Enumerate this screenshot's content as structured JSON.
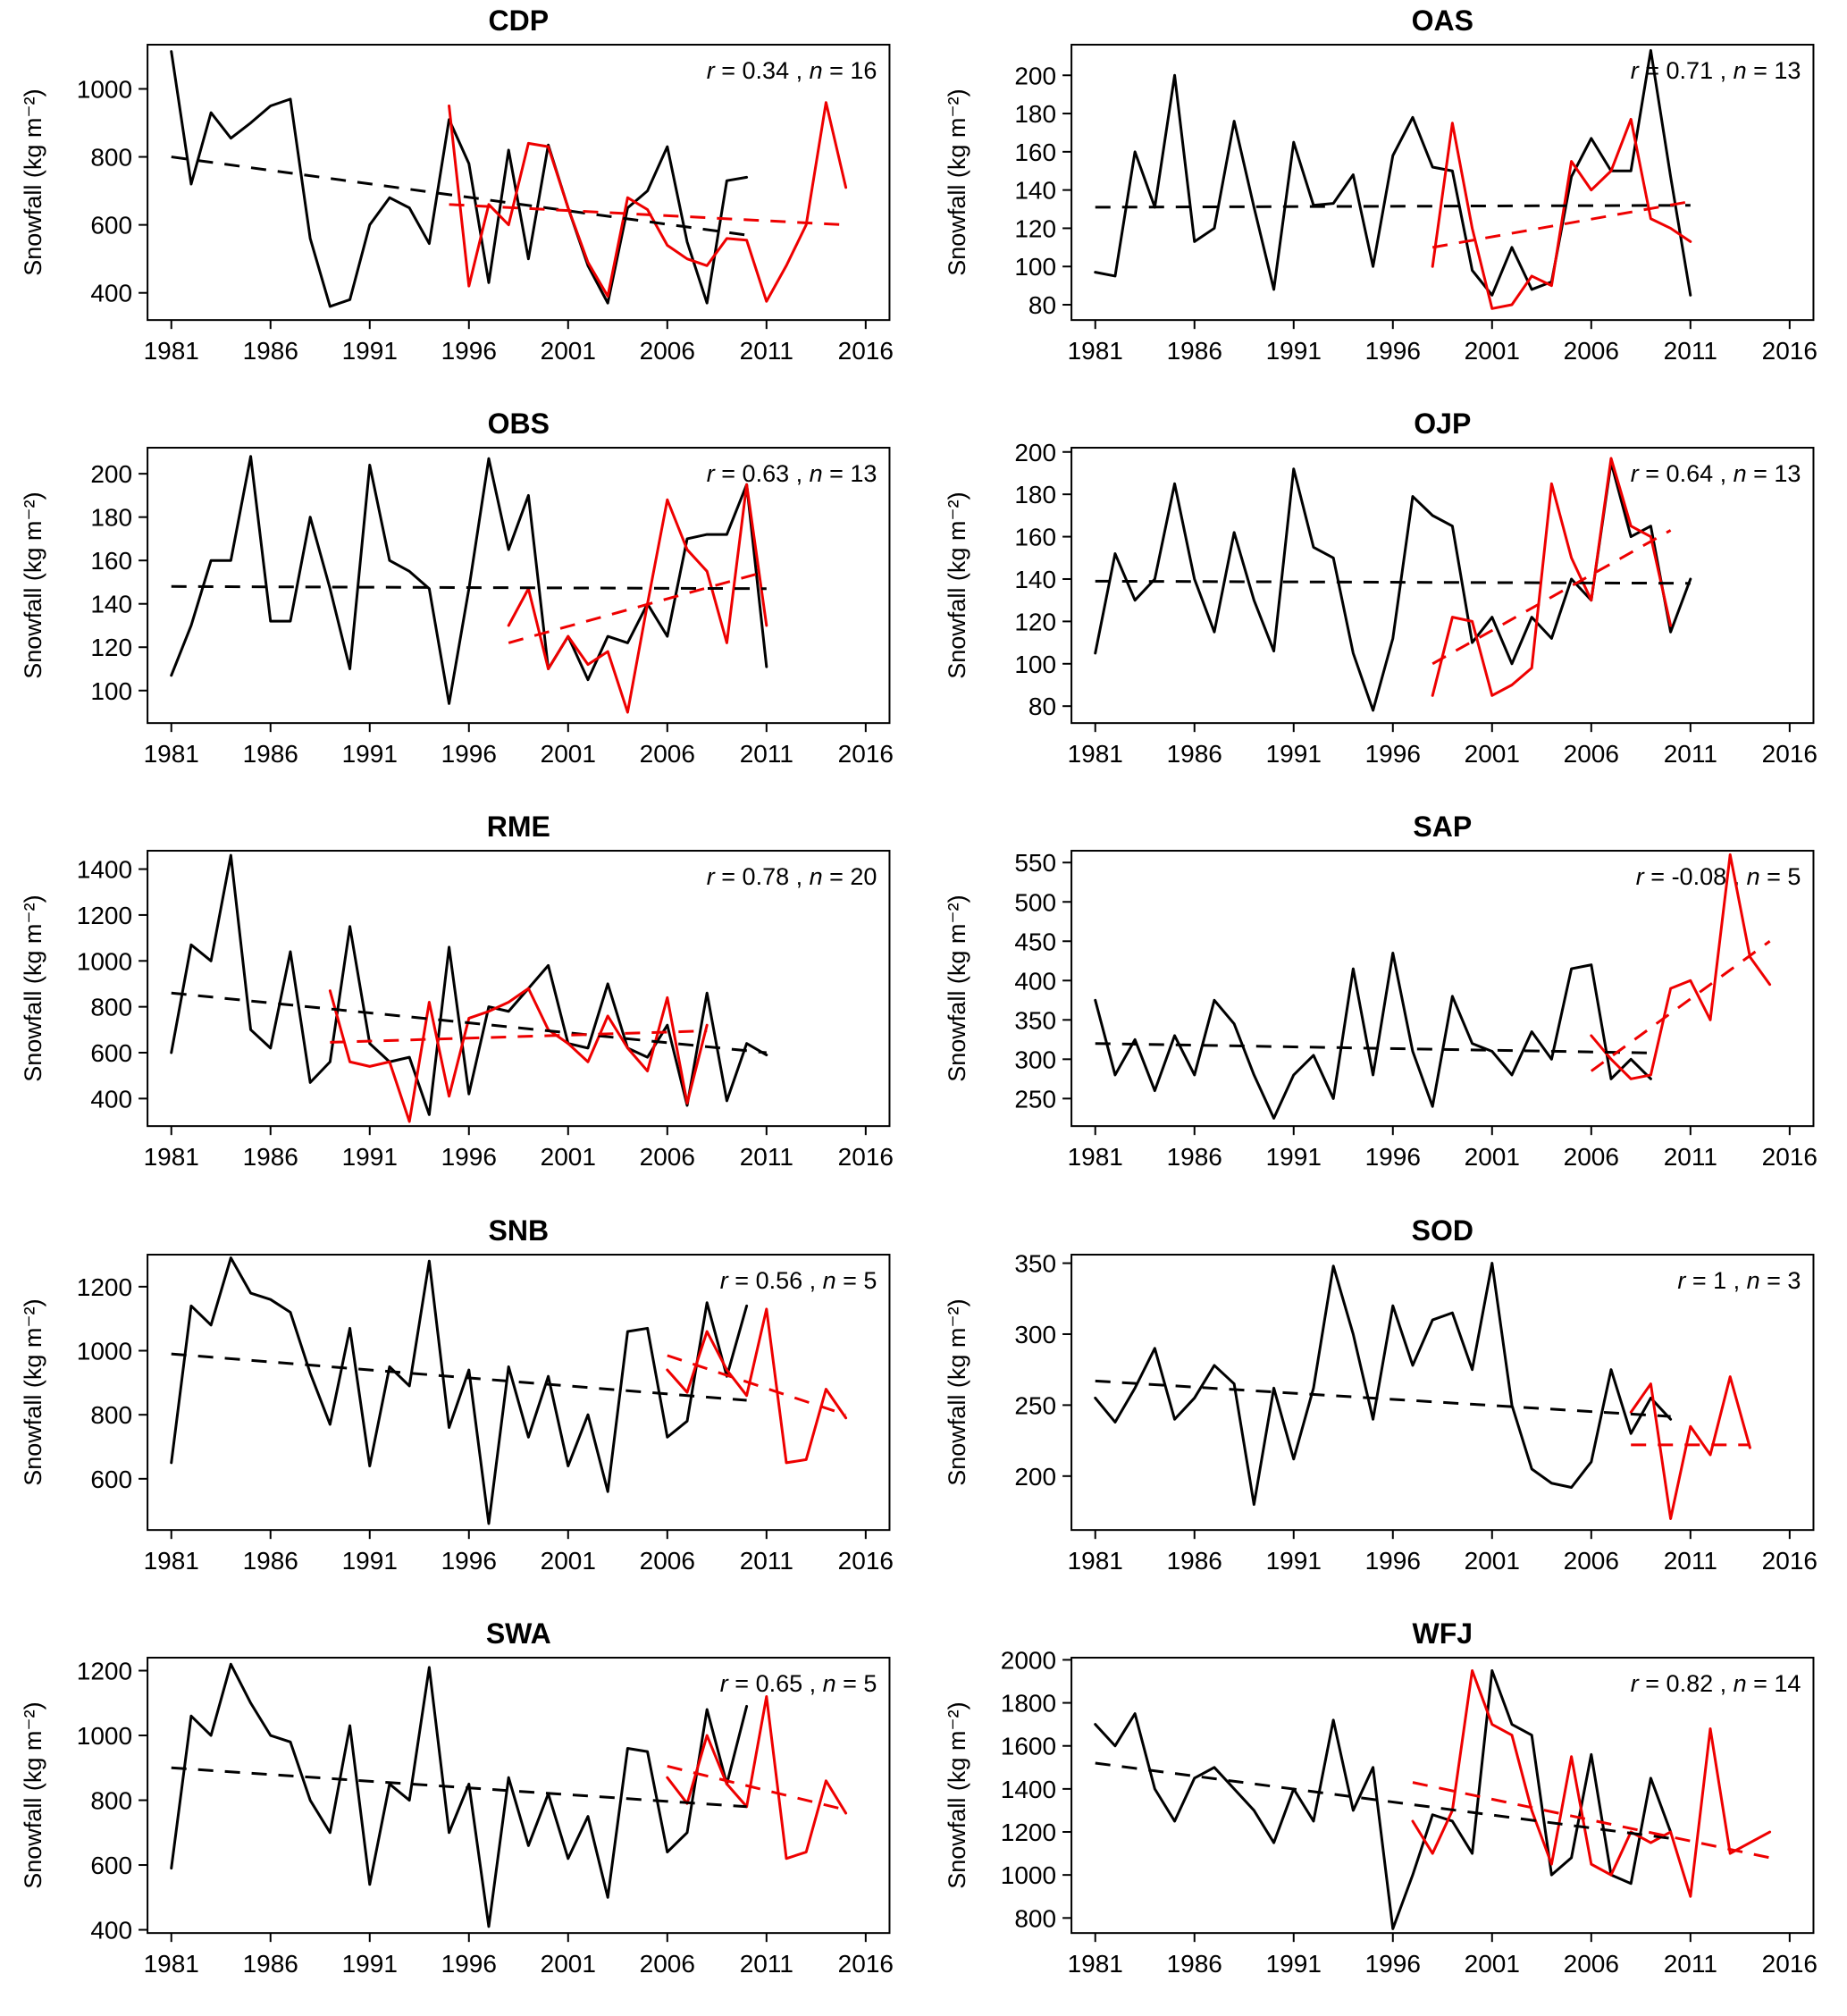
{
  "page": {
    "background": "#ffffff"
  },
  "colors": {
    "observed": "#000000",
    "model": "#ee0000"
  },
  "axis": {
    "ylabel": "Snowfall (kg m⁻²)",
    "xticks": [
      1981,
      1986,
      1991,
      1996,
      2001,
      2006,
      2011,
      2016
    ]
  },
  "chart_data": [
    {
      "type": "line",
      "title": "CDP",
      "r": "0.34",
      "n": "16",
      "annotation": "r = 0.34 , n = 16",
      "ylabel": "Snowfall (kg m⁻²)",
      "xlim": [
        1979.8,
        2017.2
      ],
      "ylim": [
        320,
        1130
      ],
      "yticks": [
        400,
        600,
        800,
        1000
      ],
      "series": [
        {
          "name": "observed",
          "color": "black",
          "start": 1981,
          "values": [
            1110,
            720,
            930,
            855,
            900,
            950,
            970,
            560,
            360,
            380,
            600,
            680,
            650,
            545,
            910,
            780,
            430,
            820,
            500,
            835,
            650,
            480,
            370,
            650,
            700,
            830,
            550,
            370,
            730,
            740
          ]
        },
        {
          "name": "model",
          "color": "red",
          "start": 1995,
          "values": [
            950,
            420,
            660,
            600,
            840,
            830,
            650,
            490,
            390,
            680,
            645,
            540,
            500,
            480,
            560,
            555,
            375,
            480,
            600,
            960,
            710
          ]
        }
      ],
      "trends": [
        {
          "name": "observed-trend",
          "color": "black",
          "x": [
            1981,
            2010
          ],
          "y": [
            800,
            570
          ]
        },
        {
          "name": "model-trend",
          "color": "red",
          "x": [
            1995,
            2015
          ],
          "y": [
            660,
            600
          ]
        }
      ]
    },
    {
      "type": "line",
      "title": "OAS",
      "r": "0.71",
      "n": "13",
      "annotation": "r = 0.71 , n = 13",
      "ylabel": "Snowfall (kg m⁻²)",
      "xlim": [
        1979.8,
        2017.2
      ],
      "ylim": [
        72,
        216
      ],
      "yticks": [
        80,
        100,
        120,
        140,
        160,
        180,
        200
      ],
      "series": [
        {
          "name": "observed",
          "color": "black",
          "start": 1981,
          "values": [
            97,
            95,
            160,
            131,
            200,
            113,
            120,
            176,
            131,
            88,
            165,
            132,
            133,
            148,
            100,
            158,
            178,
            152,
            150,
            98,
            85,
            110,
            88,
            92,
            147,
            167,
            150,
            150,
            213,
            147,
            85
          ]
        },
        {
          "name": "model",
          "color": "red",
          "start": 1998,
          "values": [
            100,
            175,
            120,
            78,
            80,
            95,
            90,
            155,
            140,
            150,
            177,
            125,
            120,
            113
          ]
        }
      ],
      "trends": [
        {
          "name": "observed-trend",
          "color": "black",
          "x": [
            1981,
            2011
          ],
          "y": [
            131,
            132
          ]
        },
        {
          "name": "model-trend",
          "color": "red",
          "x": [
            1998,
            2011
          ],
          "y": [
            110,
            134
          ]
        }
      ]
    },
    {
      "type": "line",
      "title": "OBS",
      "r": "0.63",
      "n": "13",
      "annotation": "r = 0.63 , n = 13",
      "ylabel": "Snowfall (kg m⁻²)",
      "xlim": [
        1979.8,
        2017.2
      ],
      "ylim": [
        85,
        212
      ],
      "yticks": [
        100,
        120,
        140,
        160,
        180,
        200
      ],
      "series": [
        {
          "name": "observed",
          "color": "black",
          "start": 1981,
          "values": [
            107,
            130,
            160,
            160,
            208,
            132,
            132,
            180,
            147,
            110,
            204,
            160,
            155,
            147,
            94,
            147,
            207,
            165,
            190,
            110,
            125,
            105,
            125,
            122,
            140,
            125,
            170,
            172,
            172,
            195,
            111
          ]
        },
        {
          "name": "model",
          "color": "red",
          "start": 1998,
          "values": [
            130,
            147,
            110,
            125,
            112,
            118,
            90,
            140,
            188,
            165,
            155,
            122,
            195,
            130
          ]
        }
      ],
      "trends": [
        {
          "name": "observed-trend",
          "color": "black",
          "x": [
            1981,
            2011
          ],
          "y": [
            148,
            147
          ]
        },
        {
          "name": "model-trend",
          "color": "red",
          "x": [
            1998,
            2011
          ],
          "y": [
            122,
            155
          ]
        }
      ]
    },
    {
      "type": "line",
      "title": "OJP",
      "r": "0.64",
      "n": "13",
      "annotation": "r = 0.64 , n = 13",
      "ylabel": "Snowfall (kg m⁻²)",
      "xlim": [
        1979.8,
        2017.2
      ],
      "ylim": [
        72,
        202
      ],
      "yticks": [
        80,
        100,
        120,
        140,
        160,
        180,
        200
      ],
      "series": [
        {
          "name": "observed",
          "color": "black",
          "start": 1981,
          "values": [
            105,
            152,
            130,
            140,
            185,
            140,
            115,
            162,
            130,
            106,
            192,
            155,
            150,
            105,
            78,
            112,
            179,
            170,
            165,
            110,
            122,
            100,
            122,
            112,
            140,
            130,
            195,
            160,
            165,
            115,
            140
          ]
        },
        {
          "name": "model",
          "color": "red",
          "start": 1998,
          "values": [
            85,
            122,
            120,
            85,
            90,
            98,
            185,
            150,
            130,
            197,
            165,
            160,
            118
          ]
        }
      ],
      "trends": [
        {
          "name": "observed-trend",
          "color": "black",
          "x": [
            1981,
            2011
          ],
          "y": [
            139,
            138
          ]
        },
        {
          "name": "model-trend",
          "color": "red",
          "x": [
            1998,
            2010
          ],
          "y": [
            100,
            163
          ]
        }
      ]
    },
    {
      "type": "line",
      "title": "RME",
      "r": "0.78",
      "n": "20",
      "annotation": "r = 0.78 , n = 20",
      "ylabel": "Snowfall (kg m⁻²)",
      "xlim": [
        1979.8,
        2017.2
      ],
      "ylim": [
        280,
        1480
      ],
      "yticks": [
        400,
        600,
        800,
        1000,
        1200,
        1400
      ],
      "series": [
        {
          "name": "observed",
          "color": "black",
          "start": 1981,
          "values": [
            600,
            1070,
            1000,
            1460,
            700,
            620,
            1040,
            470,
            560,
            1150,
            640,
            560,
            580,
            330,
            1060,
            420,
            800,
            780,
            880,
            980,
            640,
            620,
            900,
            620,
            580,
            720,
            370,
            860,
            390,
            640,
            590
          ]
        },
        {
          "name": "model",
          "color": "red",
          "start": 1989,
          "values": [
            870,
            560,
            540,
            560,
            300,
            820,
            410,
            750,
            780,
            820,
            880,
            700,
            640,
            560,
            760,
            620,
            520,
            840,
            380,
            720
          ]
        }
      ],
      "trends": [
        {
          "name": "observed-trend",
          "color": "black",
          "x": [
            1981,
            2011
          ],
          "y": [
            860,
            600
          ]
        },
        {
          "name": "model-trend",
          "color": "red",
          "x": [
            1989,
            2008
          ],
          "y": [
            645,
            695
          ]
        }
      ]
    },
    {
      "type": "line",
      "title": "SAP",
      "r": "-0.08",
      "n": "5",
      "annotation": "r = -0.08 , n = 5",
      "ylabel": "Snowfall (kg m⁻²)",
      "xlim": [
        1979.8,
        2017.2
      ],
      "ylim": [
        215,
        565
      ],
      "yticks": [
        250,
        300,
        350,
        400,
        450,
        500,
        550
      ],
      "series": [
        {
          "name": "observed",
          "color": "black",
          "start": 1981,
          "values": [
            375,
            280,
            325,
            260,
            330,
            280,
            375,
            345,
            280,
            225,
            280,
            305,
            250,
            415,
            280,
            435,
            310,
            240,
            380,
            320,
            310,
            280,
            335,
            300,
            415,
            420,
            275,
            300,
            275
          ]
        },
        {
          "name": "model",
          "color": "red",
          "start": 2006,
          "values": [
            330,
            300,
            275,
            280,
            390,
            400,
            350,
            560,
            430,
            395
          ]
        }
      ],
      "trends": [
        {
          "name": "observed-trend",
          "color": "black",
          "x": [
            1981,
            2009
          ],
          "y": [
            320,
            308
          ]
        },
        {
          "name": "model-trend",
          "color": "red",
          "x": [
            2006,
            2015
          ],
          "y": [
            285,
            450
          ]
        }
      ]
    },
    {
      "type": "line",
      "title": "SNB",
      "r": "0.56",
      "n": "5",
      "annotation": "r = 0.56 , n = 5",
      "ylabel": "Snowfall (kg m⁻²)",
      "xlim": [
        1979.8,
        2017.2
      ],
      "ylim": [
        440,
        1300
      ],
      "yticks": [
        600,
        800,
        1000,
        1200
      ],
      "series": [
        {
          "name": "observed",
          "color": "black",
          "start": 1981,
          "values": [
            650,
            1140,
            1080,
            1290,
            1180,
            1160,
            1120,
            930,
            770,
            1070,
            640,
            950,
            890,
            1280,
            760,
            940,
            460,
            950,
            730,
            920,
            640,
            800,
            560,
            1060,
            1070,
            730,
            780,
            1150,
            920,
            1140
          ]
        },
        {
          "name": "model",
          "color": "red",
          "start": 2006,
          "values": [
            940,
            870,
            1060,
            940,
            860,
            1130,
            650,
            660,
            880,
            790
          ]
        }
      ],
      "trends": [
        {
          "name": "observed-trend",
          "color": "black",
          "x": [
            1981,
            2010
          ],
          "y": [
            990,
            845
          ]
        },
        {
          "name": "model-trend",
          "color": "red",
          "x": [
            2006,
            2015
          ],
          "y": [
            985,
            800
          ]
        }
      ]
    },
    {
      "type": "line",
      "title": "SOD",
      "r": "1",
      "n": "3",
      "annotation": "r = 1 , n = 3",
      "ylabel": "Snowfall (kg m⁻²)",
      "xlim": [
        1979.8,
        2017.2
      ],
      "ylim": [
        162,
        356
      ],
      "yticks": [
        200,
        250,
        300,
        350
      ],
      "series": [
        {
          "name": "observed",
          "color": "black",
          "start": 1981,
          "values": [
            255,
            238,
            262,
            290,
            240,
            255,
            278,
            265,
            180,
            262,
            212,
            262,
            348,
            300,
            240,
            320,
            278,
            310,
            315,
            275,
            350,
            250,
            205,
            195,
            192,
            210,
            275,
            230,
            255,
            240
          ]
        },
        {
          "name": "model",
          "color": "red",
          "start": 2008,
          "values": [
            245,
            265,
            170,
            235,
            215,
            270,
            220
          ]
        }
      ],
      "trends": [
        {
          "name": "observed-trend",
          "color": "black",
          "x": [
            1981,
            2010
          ],
          "y": [
            267,
            242
          ]
        },
        {
          "name": "model-trend",
          "color": "red",
          "x": [
            2008,
            2014
          ],
          "y": [
            222,
            222
          ]
        }
      ]
    },
    {
      "type": "line",
      "title": "SWA",
      "r": "0.65",
      "n": "5",
      "annotation": "r = 0.65 , n = 5",
      "ylabel": "Snowfall (kg m⁻²)",
      "xlim": [
        1979.8,
        2017.2
      ],
      "ylim": [
        390,
        1240
      ],
      "yticks": [
        400,
        600,
        800,
        1000,
        1200
      ],
      "series": [
        {
          "name": "observed",
          "color": "black",
          "start": 1981,
          "values": [
            590,
            1060,
            1000,
            1220,
            1100,
            1000,
            980,
            800,
            700,
            1030,
            540,
            850,
            800,
            1210,
            700,
            850,
            410,
            870,
            660,
            820,
            620,
            750,
            500,
            960,
            950,
            640,
            700,
            1080,
            850,
            1090
          ]
        },
        {
          "name": "model",
          "color": "red",
          "start": 2006,
          "values": [
            870,
            790,
            1000,
            850,
            780,
            1120,
            620,
            640,
            860,
            760
          ]
        }
      ],
      "trends": [
        {
          "name": "observed-trend",
          "color": "black",
          "x": [
            1981,
            2010
          ],
          "y": [
            900,
            780
          ]
        },
        {
          "name": "model-trend",
          "color": "red",
          "x": [
            2006,
            2015
          ],
          "y": [
            905,
            770
          ]
        }
      ]
    },
    {
      "type": "line",
      "title": "WFJ",
      "r": "0.82",
      "n": "14",
      "annotation": "r = 0.82 , n = 14",
      "ylabel": "Snowfall (kg m⁻²)",
      "xlim": [
        1979.8,
        2017.2
      ],
      "ylim": [
        730,
        2010
      ],
      "yticks": [
        800,
        1000,
        1200,
        1400,
        1600,
        1800,
        2000
      ],
      "series": [
        {
          "name": "observed",
          "color": "black",
          "start": 1981,
          "values": [
            1700,
            1600,
            1750,
            1400,
            1250,
            1450,
            1500,
            1400,
            1300,
            1150,
            1400,
            1250,
            1720,
            1300,
            1500,
            750,
            1000,
            1280,
            1250,
            1100,
            1950,
            1700,
            1650,
            1000,
            1080,
            1560,
            1000,
            960,
            1450,
            1200
          ]
        },
        {
          "name": "model",
          "color": "red",
          "start": 1997,
          "values": [
            1250,
            1100,
            1300,
            1950,
            1700,
            1650,
            1300,
            1050,
            1550,
            1050,
            1000,
            1200,
            1150,
            1200,
            900,
            1680,
            1100,
            1150,
            1200
          ]
        }
      ],
      "trends": [
        {
          "name": "observed-trend",
          "color": "black",
          "x": [
            1981,
            2010
          ],
          "y": [
            1520,
            1170
          ]
        },
        {
          "name": "model-trend",
          "color": "red",
          "x": [
            1997,
            2015
          ],
          "y": [
            1430,
            1080
          ]
        }
      ]
    }
  ]
}
